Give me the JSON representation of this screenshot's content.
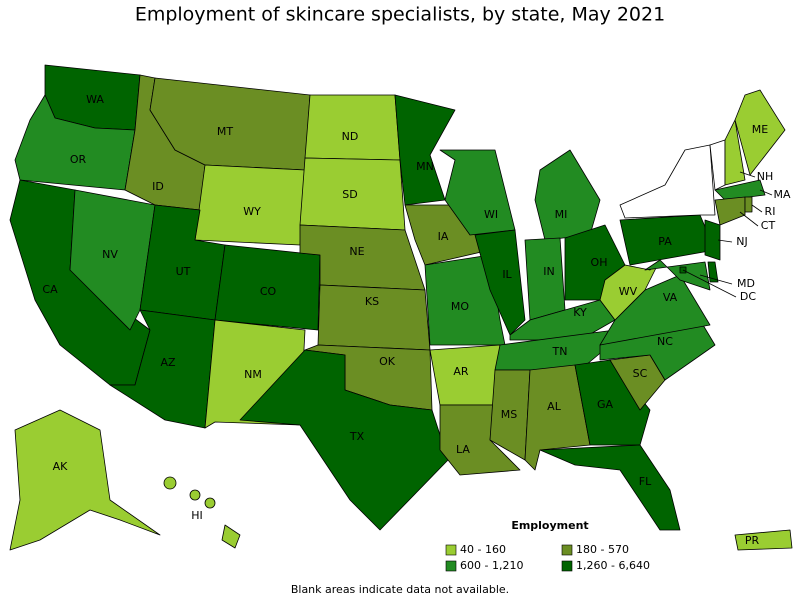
{
  "title": "Employment of skincare specialists, by state, May 2021",
  "legend": {
    "title": "Employment",
    "items": [
      {
        "label": "40 - 160",
        "color": "#9acd32"
      },
      {
        "label": "180 - 570",
        "color": "#6b8e23"
      },
      {
        "label": "600 - 1,210",
        "color": "#228b22"
      },
      {
        "label": "1,260 - 6,640",
        "color": "#006400"
      }
    ]
  },
  "states": [
    {
      "label": "WA",
      "class": 3
    },
    {
      "label": "OR",
      "class": 2
    },
    {
      "label": "CA",
      "class": 3
    },
    {
      "label": "NV",
      "class": 2
    },
    {
      "label": "ID",
      "class": 1
    },
    {
      "label": "MT",
      "class": 1
    },
    {
      "label": "WY",
      "class": 0
    },
    {
      "label": "UT",
      "class": 3
    },
    {
      "label": "CO",
      "class": 3
    },
    {
      "label": "AZ",
      "class": 3
    },
    {
      "label": "NM",
      "class": 0
    },
    {
      "label": "ND",
      "class": 0
    },
    {
      "label": "SD",
      "class": 0
    },
    {
      "label": "NE",
      "class": 1
    },
    {
      "label": "KS",
      "class": 1
    },
    {
      "label": "OK",
      "class": 1
    },
    {
      "label": "TX",
      "class": 3
    },
    {
      "label": "MN",
      "class": 3
    },
    {
      "label": "IA",
      "class": 1
    },
    {
      "label": "MO",
      "class": 2
    },
    {
      "label": "AR",
      "class": 0
    },
    {
      "label": "LA",
      "class": 1
    },
    {
      "label": "WI",
      "class": 2
    },
    {
      "label": "IL",
      "class": 3
    },
    {
      "label": "MI",
      "class": 2
    },
    {
      "label": "IN",
      "class": 2
    },
    {
      "label": "OH",
      "class": 3
    },
    {
      "label": "KY",
      "class": 2
    },
    {
      "label": "TN",
      "class": 2
    },
    {
      "label": "MS",
      "class": 1
    },
    {
      "label": "AL",
      "class": 1
    },
    {
      "label": "GA",
      "class": 3
    },
    {
      "label": "FL",
      "class": 3
    },
    {
      "label": "SC",
      "class": 1
    },
    {
      "label": "NC",
      "class": 2
    },
    {
      "label": "VA",
      "class": 2
    },
    {
      "label": "WV",
      "class": 0
    },
    {
      "label": "PA",
      "class": 3
    },
    {
      "label": null,
      "class": null
    },
    {
      "label": null,
      "class": null
    },
    {
      "label": "NH",
      "class": 0
    },
    {
      "label": "ME",
      "class": 0
    },
    {
      "label": "MA",
      "class": 2
    },
    {
      "label": "CT",
      "class": 1
    },
    {
      "label": "RI",
      "class": 1
    },
    {
      "label": "NJ",
      "class": 3
    },
    {
      "label": null,
      "class": 3
    },
    {
      "label": "MD",
      "class": 2
    },
    {
      "label": "DC",
      "class": 3
    },
    {
      "label": "AK",
      "class": 0
    },
    {
      "label": "HI",
      "class": 0
    },
    {
      "label": "PR",
      "class": 0
    }
  ],
  "note": "Blank areas indicate data not available."
}
